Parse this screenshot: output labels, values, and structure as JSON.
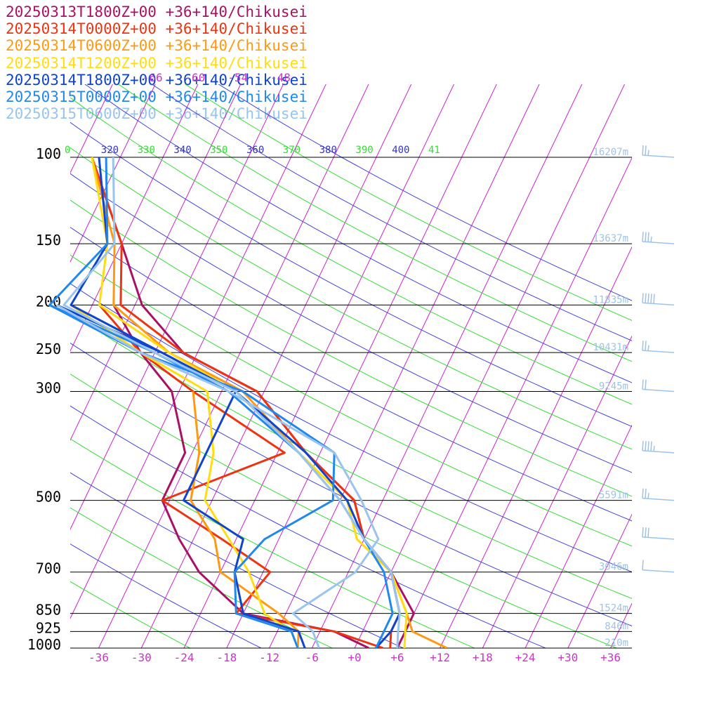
{
  "chart_data": {
    "type": "line",
    "title": "",
    "xlabel": "",
    "ylabel": "",
    "skew_t": true,
    "x_axis": {
      "unit": "degC",
      "range": [
        -40,
        39
      ],
      "ticks": [
        "-36",
        "-30",
        "-24",
        "-18",
        "-12",
        "-6",
        "+0",
        "+6",
        "+12",
        "+18",
        "+24",
        "+30",
        "+36"
      ]
    },
    "y_axis": {
      "unit": "hPa",
      "scale": "log",
      "range": [
        1000,
        100
      ],
      "ticks": [
        "100",
        "150",
        "200",
        "250",
        "300",
        "500",
        "700",
        "850",
        "925",
        "1000"
      ]
    },
    "upper_temp_labels": [
      "-66",
      "-60",
      "-54",
      "-48"
    ],
    "theta_labels": [
      {
        "text": "0",
        "color": "#33dd33"
      },
      {
        "text": "320",
        "color": "#3333cc"
      },
      {
        "text": "330",
        "color": "#33dd33"
      },
      {
        "text": "340",
        "color": "#3333cc"
      },
      {
        "text": "350",
        "color": "#33dd33"
      },
      {
        "text": "360",
        "color": "#3333cc"
      },
      {
        "text": "370",
        "color": "#33dd33"
      },
      {
        "text": "380",
        "color": "#3333cc"
      },
      {
        "text": "390",
        "color": "#33dd33"
      },
      {
        "text": "400",
        "color": "#3333cc"
      },
      {
        "text": "41",
        "color": "#33dd33"
      }
    ],
    "heights": [
      {
        "p": 100,
        "label": "16207m"
      },
      {
        "p": 150,
        "label": "13637m"
      },
      {
        "p": 200,
        "label": "11835m"
      },
      {
        "p": 250,
        "label": "10431m"
      },
      {
        "p": 300,
        "label": "9245m"
      },
      {
        "p": 500,
        "label": "5591m"
      },
      {
        "p": 700,
        "label": "3046m"
      },
      {
        "p": 850,
        "label": "1524m"
      },
      {
        "p": 925,
        "label": "846m"
      },
      {
        "p": 1000,
        "label": "210m"
      }
    ],
    "wind_barbs": [
      {
        "p": 100,
        "speed_kt": 25
      },
      {
        "p": 150,
        "speed_kt": 35
      },
      {
        "p": 200,
        "speed_kt": 50
      },
      {
        "p": 250,
        "speed_kt": 25
      },
      {
        "p": 300,
        "speed_kt": 20
      },
      {
        "p": 400,
        "speed_kt": 45
      },
      {
        "p": 500,
        "speed_kt": 25
      },
      {
        "p": 600,
        "speed_kt": 30
      },
      {
        "p": 700,
        "speed_kt": 10
      }
    ],
    "series": [
      {
        "name": "20250313T1800Z+00 +36+140/Chikusei",
        "color": "#aa1166",
        "temperature": [
          [
            1000,
            6
          ],
          [
            925,
            6
          ],
          [
            850,
            6
          ],
          [
            700,
            0
          ],
          [
            600,
            -6
          ],
          [
            500,
            -10
          ],
          [
            400,
            -20
          ],
          [
            300,
            -31
          ],
          [
            250,
            -44
          ],
          [
            200,
            -53
          ],
          [
            150,
            -60
          ],
          [
            100,
            -70
          ]
        ],
        "dewpoint": [
          [
            1000,
            2
          ],
          [
            925,
            -4
          ],
          [
            850,
            -18
          ],
          [
            700,
            -27
          ],
          [
            600,
            -32
          ],
          [
            500,
            -37
          ],
          [
            400,
            -37
          ],
          [
            300,
            -43
          ],
          [
            250,
            -50
          ],
          [
            200,
            -57
          ]
        ]
      },
      {
        "name": "20250314T0000Z+00 +36+140/Chikusei",
        "color": "#ee3311",
        "temperature": [
          [
            1000,
            5
          ],
          [
            925,
            4
          ],
          [
            850,
            4
          ],
          [
            700,
            0
          ],
          [
            600,
            -6
          ],
          [
            500,
            -10
          ],
          [
            400,
            -20
          ],
          [
            300,
            -31
          ],
          [
            250,
            -44
          ],
          [
            200,
            -56
          ],
          [
            150,
            -60
          ],
          [
            100,
            -70
          ]
        ],
        "dewpoint": [
          [
            1000,
            4
          ],
          [
            925,
            -4
          ],
          [
            850,
            -19
          ],
          [
            700,
            -17
          ],
          [
            600,
            -26
          ],
          [
            500,
            -37
          ],
          [
            400,
            -23
          ],
          [
            300,
            -40
          ],
          [
            250,
            -50
          ],
          [
            200,
            -59
          ]
        ]
      },
      {
        "name": "20250314T0600Z+00 +36+140/Chikusei",
        "color": "#ff9911",
        "temperature": [
          [
            1000,
            13
          ],
          [
            925,
            7
          ],
          [
            850,
            5
          ],
          [
            700,
            0
          ],
          [
            600,
            -7
          ],
          [
            500,
            -11
          ],
          [
            400,
            -21
          ],
          [
            300,
            -33
          ],
          [
            250,
            -46
          ],
          [
            200,
            -57
          ],
          [
            150,
            -61
          ],
          [
            100,
            -70
          ]
        ],
        "dewpoint": [
          [
            1000,
            -8
          ],
          [
            925,
            -9
          ],
          [
            850,
            -13
          ],
          [
            700,
            -24
          ],
          [
            600,
            -27
          ],
          [
            500,
            -33
          ],
          [
            400,
            -35
          ],
          [
            300,
            -40
          ]
        ]
      },
      {
        "name": "20250314T1200Z+00 +36+140/Chikusei",
        "color": "#ffdd11",
        "temperature": [
          [
            1000,
            7
          ],
          [
            925,
            6
          ],
          [
            850,
            5
          ],
          [
            700,
            0
          ],
          [
            600,
            -7
          ],
          [
            500,
            -11
          ],
          [
            400,
            -21
          ],
          [
            300,
            -34
          ],
          [
            250,
            -46
          ],
          [
            200,
            -59
          ],
          [
            150,
            -62
          ],
          [
            100,
            -70
          ]
        ],
        "dewpoint": [
          [
            1000,
            -8
          ],
          [
            925,
            -10
          ],
          [
            850,
            -15
          ],
          [
            700,
            -20
          ],
          [
            600,
            -25
          ],
          [
            500,
            -31
          ],
          [
            400,
            -33
          ],
          [
            300,
            -38
          ],
          [
            250,
            -50
          ],
          [
            200,
            -63
          ]
        ]
      },
      {
        "name": "20250314T1800Z+00 +36+140/Chikusei",
        "color": "#1144cc",
        "temperature": [
          [
            1000,
            3
          ],
          [
            925,
            4
          ],
          [
            850,
            4
          ],
          [
            700,
            0
          ],
          [
            600,
            -6
          ],
          [
            500,
            -11
          ],
          [
            400,
            -20
          ],
          [
            300,
            -34
          ],
          [
            250,
            -47
          ],
          [
            200,
            -63
          ],
          [
            150,
            -62
          ],
          [
            100,
            -69
          ]
        ],
        "dewpoint": [
          [
            1000,
            -7
          ],
          [
            925,
            -9
          ],
          [
            850,
            -18
          ],
          [
            700,
            -22
          ],
          [
            600,
            -23
          ],
          [
            500,
            -34
          ],
          [
            400,
            -34
          ],
          [
            300,
            -34
          ],
          [
            250,
            -47
          ],
          [
            200,
            -65
          ]
        ]
      },
      {
        "name": "20250315T0000Z+00 +36+140/Chikusei",
        "color": "#2288ee",
        "temperature": [
          [
            1000,
            3
          ],
          [
            925,
            3
          ],
          [
            850,
            3
          ],
          [
            700,
            -1
          ],
          [
            600,
            -6
          ],
          [
            500,
            -12
          ],
          [
            400,
            -21
          ],
          [
            300,
            -35
          ],
          [
            250,
            -48
          ],
          [
            200,
            -66
          ],
          [
            150,
            -62
          ],
          [
            100,
            -68
          ]
        ],
        "dewpoint": [
          [
            1000,
            -8
          ],
          [
            925,
            -10
          ],
          [
            850,
            -19
          ],
          [
            700,
            -22
          ],
          [
            600,
            -20
          ],
          [
            500,
            -13
          ],
          [
            400,
            -16
          ],
          [
            300,
            -33
          ],
          [
            250,
            -50
          ],
          [
            200,
            -66
          ]
        ]
      },
      {
        "name": "20250315T0600Z+00 +36+140/Chikusei",
        "color": "#99c4ee",
        "temperature": [
          [
            1000,
            6
          ],
          [
            925,
            5
          ],
          [
            850,
            4
          ],
          [
            700,
            0
          ],
          [
            600,
            -6
          ],
          [
            500,
            -12
          ],
          [
            400,
            -21
          ],
          [
            300,
            -34
          ],
          [
            250,
            -48
          ],
          [
            200,
            -64
          ],
          [
            150,
            -61
          ],
          [
            100,
            -67
          ]
        ],
        "dewpoint": [
          [
            1000,
            -5
          ],
          [
            925,
            -7
          ],
          [
            850,
            -11
          ],
          [
            700,
            -5
          ],
          [
            600,
            -4
          ],
          [
            500,
            -9
          ],
          [
            400,
            -16
          ],
          [
            300,
            -35
          ],
          [
            250,
            -50
          ],
          [
            200,
            -65
          ]
        ]
      }
    ]
  }
}
